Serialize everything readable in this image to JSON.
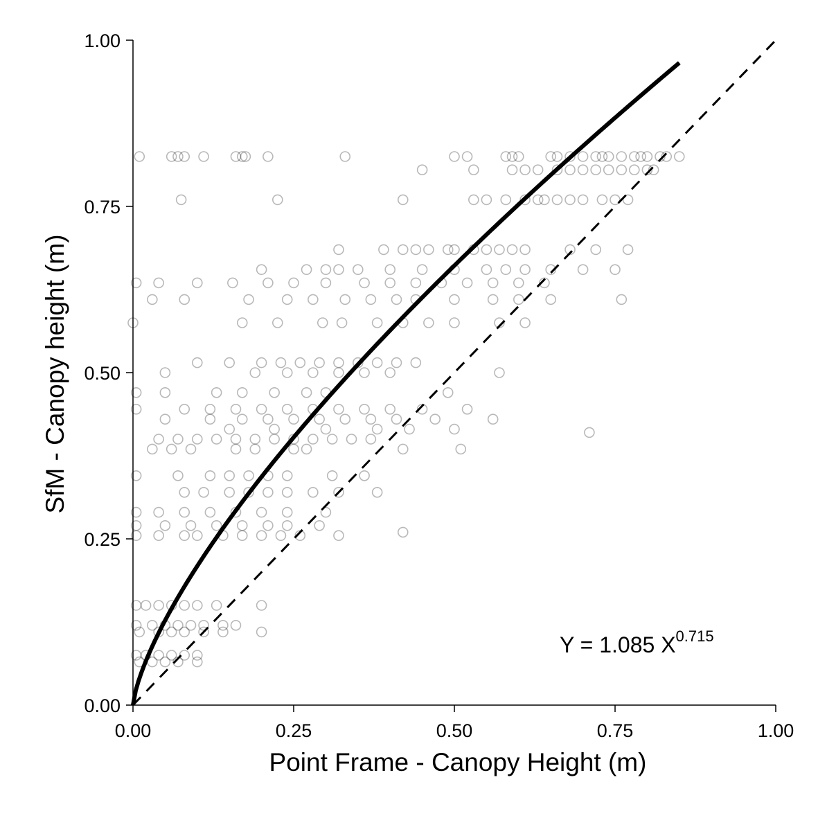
{
  "chart_data": {
    "type": "scatter",
    "xlabel": "Point Frame - Canopy Height (m)",
    "ylabel": "SfM - Canopy height (m)",
    "xlim": [
      0,
      1
    ],
    "ylim": [
      0,
      1
    ],
    "x_ticks": [
      "0.00",
      "0.25",
      "0.50",
      "0.75",
      "1.00"
    ],
    "y_ticks": [
      "0.00",
      "0.25",
      "0.50",
      "0.75",
      "1.00"
    ],
    "grid": false,
    "point_color": "#000000",
    "point_alpha": 0.28,
    "fit": {
      "label_prefix": "Y = 1.085 X",
      "label_exponent": "0.715",
      "a": 1.085,
      "b": 0.715,
      "x_range": [
        0,
        0.85
      ]
    },
    "reference_line": {
      "style": "dashed",
      "slope": 1,
      "x_range": [
        0,
        1
      ]
    },
    "points": [
      [
        0.01,
        0.825
      ],
      [
        0.06,
        0.825
      ],
      [
        0.07,
        0.825
      ],
      [
        0.08,
        0.825
      ],
      [
        0.11,
        0.825
      ],
      [
        0.16,
        0.825
      ],
      [
        0.17,
        0.825
      ],
      [
        0.175,
        0.825
      ],
      [
        0.21,
        0.825
      ],
      [
        0.33,
        0.825
      ],
      [
        0.5,
        0.825
      ],
      [
        0.52,
        0.825
      ],
      [
        0.58,
        0.825
      ],
      [
        0.59,
        0.825
      ],
      [
        0.6,
        0.825
      ],
      [
        0.65,
        0.825
      ],
      [
        0.66,
        0.825
      ],
      [
        0.68,
        0.825
      ],
      [
        0.7,
        0.825
      ],
      [
        0.72,
        0.825
      ],
      [
        0.73,
        0.825
      ],
      [
        0.74,
        0.825
      ],
      [
        0.76,
        0.825
      ],
      [
        0.78,
        0.825
      ],
      [
        0.79,
        0.825
      ],
      [
        0.8,
        0.825
      ],
      [
        0.82,
        0.825
      ],
      [
        0.83,
        0.825
      ],
      [
        0.85,
        0.825
      ],
      [
        0.45,
        0.805
      ],
      [
        0.53,
        0.805
      ],
      [
        0.59,
        0.805
      ],
      [
        0.61,
        0.805
      ],
      [
        0.63,
        0.805
      ],
      [
        0.66,
        0.805
      ],
      [
        0.68,
        0.805
      ],
      [
        0.7,
        0.805
      ],
      [
        0.72,
        0.805
      ],
      [
        0.74,
        0.805
      ],
      [
        0.76,
        0.805
      ],
      [
        0.78,
        0.805
      ],
      [
        0.8,
        0.805
      ],
      [
        0.81,
        0.805
      ],
      [
        0.075,
        0.76
      ],
      [
        0.225,
        0.76
      ],
      [
        0.42,
        0.76
      ],
      [
        0.53,
        0.76
      ],
      [
        0.55,
        0.76
      ],
      [
        0.58,
        0.76
      ],
      [
        0.61,
        0.76
      ],
      [
        0.63,
        0.76
      ],
      [
        0.64,
        0.76
      ],
      [
        0.66,
        0.76
      ],
      [
        0.68,
        0.76
      ],
      [
        0.7,
        0.76
      ],
      [
        0.73,
        0.76
      ],
      [
        0.75,
        0.76
      ],
      [
        0.77,
        0.76
      ],
      [
        0.32,
        0.685
      ],
      [
        0.39,
        0.685
      ],
      [
        0.42,
        0.685
      ],
      [
        0.44,
        0.685
      ],
      [
        0.46,
        0.685
      ],
      [
        0.49,
        0.685
      ],
      [
        0.5,
        0.685
      ],
      [
        0.53,
        0.685
      ],
      [
        0.55,
        0.685
      ],
      [
        0.57,
        0.685
      ],
      [
        0.59,
        0.685
      ],
      [
        0.61,
        0.685
      ],
      [
        0.68,
        0.685
      ],
      [
        0.72,
        0.685
      ],
      [
        0.77,
        0.685
      ],
      [
        0.2,
        0.655
      ],
      [
        0.27,
        0.655
      ],
      [
        0.3,
        0.655
      ],
      [
        0.32,
        0.655
      ],
      [
        0.35,
        0.655
      ],
      [
        0.4,
        0.655
      ],
      [
        0.45,
        0.655
      ],
      [
        0.5,
        0.655
      ],
      [
        0.55,
        0.655
      ],
      [
        0.58,
        0.655
      ],
      [
        0.61,
        0.655
      ],
      [
        0.65,
        0.655
      ],
      [
        0.7,
        0.655
      ],
      [
        0.75,
        0.655
      ],
      [
        0.005,
        0.635
      ],
      [
        0.04,
        0.635
      ],
      [
        0.1,
        0.635
      ],
      [
        0.155,
        0.635
      ],
      [
        0.21,
        0.635
      ],
      [
        0.25,
        0.635
      ],
      [
        0.3,
        0.635
      ],
      [
        0.36,
        0.635
      ],
      [
        0.4,
        0.635
      ],
      [
        0.44,
        0.635
      ],
      [
        0.48,
        0.635
      ],
      [
        0.52,
        0.635
      ],
      [
        0.56,
        0.635
      ],
      [
        0.6,
        0.635
      ],
      [
        0.64,
        0.635
      ],
      [
        0.03,
        0.61
      ],
      [
        0.08,
        0.61
      ],
      [
        0.18,
        0.61
      ],
      [
        0.24,
        0.61
      ],
      [
        0.28,
        0.61
      ],
      [
        0.33,
        0.61
      ],
      [
        0.37,
        0.61
      ],
      [
        0.41,
        0.61
      ],
      [
        0.44,
        0.61
      ],
      [
        0.5,
        0.61
      ],
      [
        0.56,
        0.61
      ],
      [
        0.6,
        0.61
      ],
      [
        0.65,
        0.61
      ],
      [
        0.76,
        0.61
      ],
      [
        0.0,
        0.575
      ],
      [
        0.17,
        0.575
      ],
      [
        0.225,
        0.575
      ],
      [
        0.295,
        0.575
      ],
      [
        0.325,
        0.575
      ],
      [
        0.38,
        0.575
      ],
      [
        0.42,
        0.575
      ],
      [
        0.46,
        0.575
      ],
      [
        0.5,
        0.575
      ],
      [
        0.57,
        0.575
      ],
      [
        0.61,
        0.575
      ],
      [
        0.1,
        0.515
      ],
      [
        0.15,
        0.515
      ],
      [
        0.2,
        0.515
      ],
      [
        0.23,
        0.515
      ],
      [
        0.26,
        0.515
      ],
      [
        0.29,
        0.515
      ],
      [
        0.32,
        0.515
      ],
      [
        0.35,
        0.515
      ],
      [
        0.38,
        0.515
      ],
      [
        0.41,
        0.515
      ],
      [
        0.44,
        0.515
      ],
      [
        0.05,
        0.5
      ],
      [
        0.19,
        0.5
      ],
      [
        0.24,
        0.5
      ],
      [
        0.28,
        0.5
      ],
      [
        0.32,
        0.5
      ],
      [
        0.36,
        0.5
      ],
      [
        0.4,
        0.5
      ],
      [
        0.57,
        0.5
      ],
      [
        0.005,
        0.47
      ],
      [
        0.05,
        0.47
      ],
      [
        0.13,
        0.47
      ],
      [
        0.17,
        0.47
      ],
      [
        0.22,
        0.47
      ],
      [
        0.27,
        0.47
      ],
      [
        0.3,
        0.47
      ],
      [
        0.49,
        0.47
      ],
      [
        0.005,
        0.445
      ],
      [
        0.08,
        0.445
      ],
      [
        0.12,
        0.445
      ],
      [
        0.16,
        0.445
      ],
      [
        0.2,
        0.445
      ],
      [
        0.24,
        0.445
      ],
      [
        0.28,
        0.445
      ],
      [
        0.32,
        0.445
      ],
      [
        0.36,
        0.445
      ],
      [
        0.4,
        0.445
      ],
      [
        0.45,
        0.445
      ],
      [
        0.52,
        0.445
      ],
      [
        0.05,
        0.43
      ],
      [
        0.12,
        0.43
      ],
      [
        0.17,
        0.43
      ],
      [
        0.21,
        0.43
      ],
      [
        0.25,
        0.43
      ],
      [
        0.29,
        0.43
      ],
      [
        0.33,
        0.43
      ],
      [
        0.37,
        0.43
      ],
      [
        0.41,
        0.43
      ],
      [
        0.47,
        0.43
      ],
      [
        0.56,
        0.43
      ],
      [
        0.15,
        0.415
      ],
      [
        0.22,
        0.415
      ],
      [
        0.3,
        0.415
      ],
      [
        0.38,
        0.415
      ],
      [
        0.43,
        0.415
      ],
      [
        0.5,
        0.415
      ],
      [
        0.71,
        0.41
      ],
      [
        0.04,
        0.4
      ],
      [
        0.07,
        0.4
      ],
      [
        0.1,
        0.4
      ],
      [
        0.13,
        0.4
      ],
      [
        0.16,
        0.4
      ],
      [
        0.19,
        0.4
      ],
      [
        0.22,
        0.4
      ],
      [
        0.25,
        0.4
      ],
      [
        0.28,
        0.4
      ],
      [
        0.31,
        0.4
      ],
      [
        0.34,
        0.4
      ],
      [
        0.37,
        0.4
      ],
      [
        0.03,
        0.385
      ],
      [
        0.06,
        0.385
      ],
      [
        0.09,
        0.385
      ],
      [
        0.16,
        0.385
      ],
      [
        0.19,
        0.385
      ],
      [
        0.25,
        0.385
      ],
      [
        0.27,
        0.385
      ],
      [
        0.42,
        0.385
      ],
      [
        0.51,
        0.385
      ],
      [
        0.005,
        0.345
      ],
      [
        0.07,
        0.345
      ],
      [
        0.12,
        0.345
      ],
      [
        0.15,
        0.345
      ],
      [
        0.18,
        0.345
      ],
      [
        0.21,
        0.345
      ],
      [
        0.24,
        0.345
      ],
      [
        0.31,
        0.345
      ],
      [
        0.36,
        0.345
      ],
      [
        0.08,
        0.32
      ],
      [
        0.11,
        0.32
      ],
      [
        0.15,
        0.32
      ],
      [
        0.18,
        0.32
      ],
      [
        0.21,
        0.32
      ],
      [
        0.24,
        0.32
      ],
      [
        0.28,
        0.32
      ],
      [
        0.32,
        0.32
      ],
      [
        0.38,
        0.32
      ],
      [
        0.005,
        0.29
      ],
      [
        0.04,
        0.29
      ],
      [
        0.08,
        0.29
      ],
      [
        0.12,
        0.29
      ],
      [
        0.16,
        0.29
      ],
      [
        0.2,
        0.29
      ],
      [
        0.24,
        0.29
      ],
      [
        0.3,
        0.29
      ],
      [
        0.005,
        0.27
      ],
      [
        0.05,
        0.27
      ],
      [
        0.09,
        0.27
      ],
      [
        0.13,
        0.27
      ],
      [
        0.17,
        0.27
      ],
      [
        0.21,
        0.27
      ],
      [
        0.24,
        0.27
      ],
      [
        0.29,
        0.27
      ],
      [
        0.005,
        0.255
      ],
      [
        0.04,
        0.255
      ],
      [
        0.08,
        0.255
      ],
      [
        0.1,
        0.255
      ],
      [
        0.14,
        0.255
      ],
      [
        0.17,
        0.255
      ],
      [
        0.2,
        0.255
      ],
      [
        0.23,
        0.255
      ],
      [
        0.26,
        0.255
      ],
      [
        0.32,
        0.255
      ],
      [
        0.42,
        0.26
      ],
      [
        0.005,
        0.15
      ],
      [
        0.02,
        0.15
      ],
      [
        0.04,
        0.15
      ],
      [
        0.06,
        0.15
      ],
      [
        0.08,
        0.15
      ],
      [
        0.1,
        0.15
      ],
      [
        0.13,
        0.15
      ],
      [
        0.2,
        0.15
      ],
      [
        0.005,
        0.12
      ],
      [
        0.03,
        0.12
      ],
      [
        0.05,
        0.12
      ],
      [
        0.07,
        0.12
      ],
      [
        0.09,
        0.12
      ],
      [
        0.11,
        0.12
      ],
      [
        0.14,
        0.12
      ],
      [
        0.16,
        0.12
      ],
      [
        0.01,
        0.11
      ],
      [
        0.04,
        0.11
      ],
      [
        0.06,
        0.11
      ],
      [
        0.08,
        0.11
      ],
      [
        0.11,
        0.11
      ],
      [
        0.14,
        0.11
      ],
      [
        0.2,
        0.11
      ],
      [
        0.005,
        0.075
      ],
      [
        0.02,
        0.075
      ],
      [
        0.04,
        0.075
      ],
      [
        0.06,
        0.075
      ],
      [
        0.08,
        0.075
      ],
      [
        0.1,
        0.075
      ],
      [
        0.01,
        0.065
      ],
      [
        0.03,
        0.065
      ],
      [
        0.05,
        0.065
      ],
      [
        0.07,
        0.065
      ],
      [
        0.1,
        0.065
      ]
    ]
  }
}
